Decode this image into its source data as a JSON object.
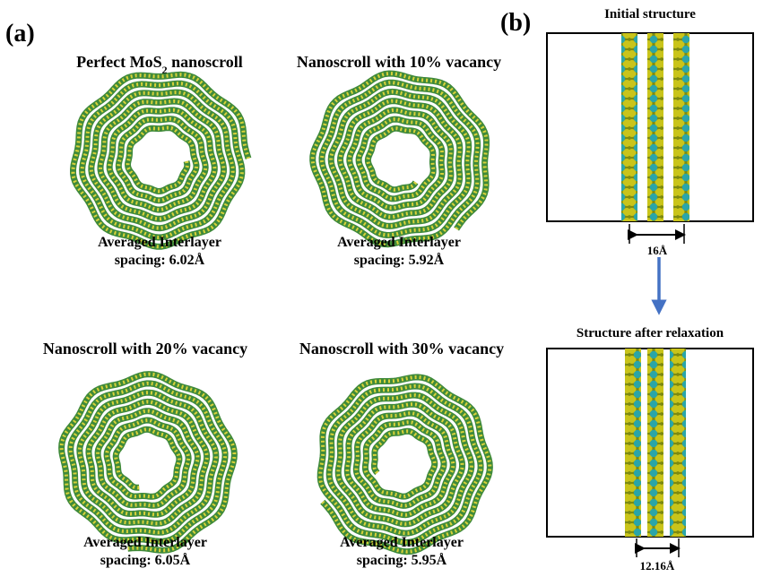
{
  "panel_a": {
    "label": "(a)",
    "items": [
      {
        "title": [
          "Perfect MoS",
          "2",
          " nanoscroll"
        ],
        "caption": [
          "Averaged Interlayer",
          "spacing: 6.02Å"
        ]
      },
      {
        "title": [
          "Nanoscroll with 10% vacancy"
        ],
        "caption": [
          "Averaged Interlayer",
          "spacing: 5.92Å"
        ]
      },
      {
        "title": [
          "Nanoscroll with 20% vacancy"
        ],
        "caption": [
          "Averaged Interlayer",
          "spacing: 6.05Å"
        ]
      },
      {
        "title": [
          "Nanoscroll with 30% vacancy"
        ],
        "caption": [
          "Averaged Interlayer",
          "spacing: 5.95Å"
        ]
      }
    ]
  },
  "panel_b": {
    "label": "(b)",
    "initial": {
      "title": "Initial structure",
      "spacing": "16Å"
    },
    "relaxed": {
      "title": "Structure after relaxation",
      "spacing": "12.16Å"
    }
  }
}
